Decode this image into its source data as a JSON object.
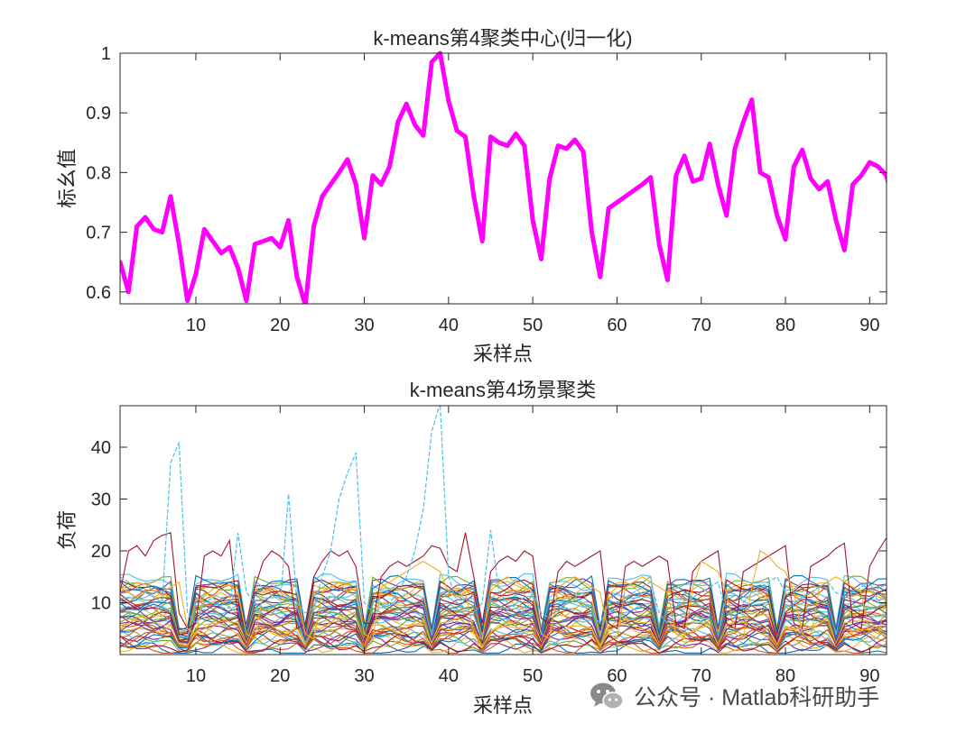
{
  "chart_data": [
    {
      "type": "line",
      "title": "k-means第4聚类中心(归一化)",
      "xlabel": "采样点",
      "ylabel": "标幺值",
      "xlim": [
        1,
        92
      ],
      "ylim": [
        0.58,
        1.0
      ],
      "xticks": [
        10,
        20,
        30,
        40,
        50,
        60,
        70,
        80,
        90
      ],
      "yticks": [
        0.6,
        0.7,
        0.8,
        0.9,
        1
      ],
      "ytick_labels": [
        "0.6",
        "0.7",
        "0.8",
        "0.9",
        "1"
      ],
      "grid": false,
      "line_color": "#ff00ff",
      "series": [
        {
          "values": [
            0.65,
            0.6,
            0.71,
            0.725,
            0.705,
            0.7,
            0.76,
            0.68,
            0.585,
            0.63,
            0.705,
            0.685,
            0.665,
            0.675,
            0.64,
            0.585,
            0.68,
            0.685,
            0.69,
            0.675,
            0.72,
            0.625,
            0.578,
            0.71,
            0.76,
            0.78,
            0.8,
            0.822,
            0.78,
            0.69,
            0.795,
            0.78,
            0.81,
            0.885,
            0.915,
            0.88,
            0.862,
            0.985,
            1.0,
            0.92,
            0.87,
            0.86,
            0.76,
            0.685,
            0.86,
            0.85,
            0.845,
            0.865,
            0.845,
            0.72,
            0.655,
            0.79,
            0.845,
            0.84,
            0.855,
            0.835,
            0.7,
            0.625,
            0.74,
            0.75,
            0.76,
            0.77,
            0.78,
            0.792,
            0.68,
            0.62,
            0.795,
            0.828,
            0.785,
            0.79,
            0.848,
            0.78,
            0.728,
            0.84,
            0.885,
            0.922,
            0.8,
            0.792,
            0.728,
            0.688,
            0.81,
            0.838,
            0.79,
            0.772,
            0.785,
            0.72,
            0.67,
            0.78,
            0.795,
            0.817,
            0.81,
            0.795,
            0.735
          ]
        }
      ]
    },
    {
      "type": "line",
      "title": "k-means第4场景聚类",
      "xlabel": "采样点",
      "ylabel": "负荷",
      "xlim": [
        1,
        92
      ],
      "ylim": [
        0,
        48
      ],
      "xticks": [
        10,
        20,
        30,
        40,
        50,
        60,
        70,
        80,
        90
      ],
      "yticks": [
        10,
        20,
        30,
        40
      ],
      "grid": false,
      "palette": [
        "#0072bd",
        "#d95319",
        "#edb120",
        "#7e2f8e",
        "#77ac30",
        "#4dbeee",
        "#a2142f"
      ],
      "levels": [
        1,
        1.5,
        2,
        2.5,
        3,
        3.5,
        4,
        4.5,
        5,
        5.5,
        6,
        6.5,
        7,
        7.5,
        8,
        8.5,
        9,
        9.5,
        10,
        10.5,
        11,
        11.5,
        12,
        12.5,
        13,
        13.5,
        14,
        2.2,
        3.2,
        4.2,
        5.2,
        6.2,
        7.2,
        8.2,
        9.2,
        10.2,
        11.2,
        12.2,
        6.7,
        8.7,
        10.7,
        12.7,
        13.6,
        3.7,
        5.7,
        7.7
      ],
      "dips": [
        8,
        9,
        16,
        23,
        30,
        38,
        44,
        51,
        58,
        65,
        72,
        79,
        86
      ],
      "peak_series": {
        "color": "#4dbeee",
        "values": [
          15,
          14,
          13,
          12,
          11,
          10,
          37,
          41,
          8,
          6,
          10,
          11,
          9,
          9,
          23.5,
          12,
          10,
          9,
          8,
          9,
          31,
          10,
          8,
          9,
          15,
          20,
          30,
          35,
          39,
          10,
          8,
          9,
          10,
          12,
          15,
          20,
          28,
          43,
          48.5,
          15,
          10,
          9,
          8,
          10,
          24,
          12,
          10,
          9,
          8,
          12,
          8,
          7,
          9,
          10,
          11,
          12,
          8,
          6,
          10,
          12,
          11,
          12,
          13,
          14,
          8,
          6,
          9,
          12,
          11,
          12,
          13,
          14,
          8,
          7,
          10,
          12,
          13,
          14,
          15,
          12,
          10,
          11,
          12,
          13,
          14,
          12,
          11,
          12,
          13,
          14,
          10,
          12
        ]
      },
      "high_series": [
        {
          "color": "#a2142f",
          "values": [
            12,
            20,
            21,
            19,
            22,
            23,
            23.5,
            8,
            5,
            6,
            19,
            20,
            19,
            22,
            7,
            6,
            13,
            18,
            20,
            19,
            17,
            5,
            6,
            15,
            18,
            20,
            19,
            20,
            17,
            6,
            6,
            15,
            17,
            18,
            17,
            18,
            19,
            21,
            20.5,
            17,
            16,
            23.5,
            15,
            6,
            16,
            18,
            19,
            18,
            20,
            19,
            7,
            6,
            16,
            18,
            17,
            18,
            19,
            20,
            6,
            5,
            17,
            18,
            17,
            18,
            19,
            18,
            6,
            5,
            16,
            18,
            19,
            20,
            6,
            5,
            16,
            17,
            18,
            19,
            20,
            21,
            6,
            5,
            17,
            18,
            19,
            20.5,
            21.5,
            6,
            5,
            17,
            20,
            22.5,
            18
          ]
        },
        {
          "color": "#edb120",
          "values": [
            13,
            12,
            11,
            12,
            11,
            12,
            13,
            14,
            5,
            4,
            12,
            11,
            12,
            11,
            12,
            4,
            3,
            12,
            13,
            12,
            11,
            12,
            4,
            3,
            12,
            13,
            14,
            12,
            13,
            4,
            3,
            13,
            14,
            15,
            16,
            17,
            18,
            17,
            16,
            12,
            11,
            12,
            4,
            3,
            13,
            14,
            15,
            14,
            13,
            12,
            4,
            3,
            13,
            14,
            15,
            14,
            13,
            12,
            4,
            3,
            13,
            14,
            15,
            14,
            13,
            12,
            4,
            3,
            13,
            18,
            17,
            16,
            12,
            4,
            3,
            13,
            20,
            19,
            17,
            16,
            12,
            4,
            3,
            13,
            14,
            15,
            14,
            13,
            12,
            4,
            3,
            12,
            16
          ]
        }
      ]
    }
  ],
  "watermark": {
    "icon": "wechat-icon",
    "text": "公众号 · Matlab科研助手"
  }
}
